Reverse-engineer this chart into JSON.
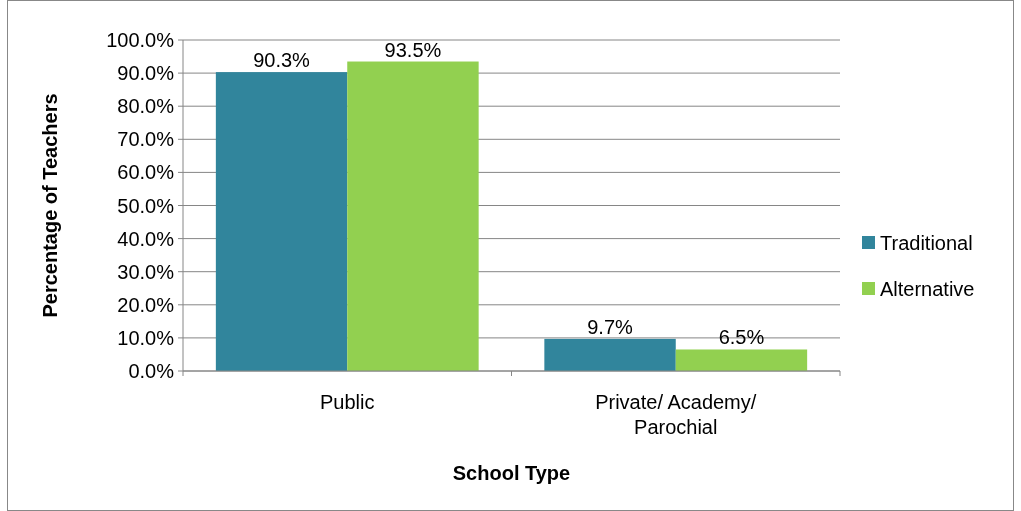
{
  "chart_data": {
    "type": "bar",
    "xlabel": "School Type",
    "ylabel": "Percentage of Teachers",
    "categories": [
      "Public",
      "Private/ Academy/ Parochial"
    ],
    "series": [
      {
        "name": "Traditional",
        "color": "#31859c",
        "values": [
          90.3,
          9.7
        ],
        "value_labels": [
          "90.3%",
          "9.7%"
        ]
      },
      {
        "name": "Alternative",
        "color": "#92d050",
        "values": [
          93.5,
          6.5
        ],
        "value_labels": [
          "93.5%",
          "6.5%"
        ]
      }
    ],
    "ylim": [
      0,
      100
    ],
    "yticks": [
      {
        "value": 0,
        "label": "0.0%"
      },
      {
        "value": 10,
        "label": "10.0%"
      },
      {
        "value": 20,
        "label": "20.0%"
      },
      {
        "value": 30,
        "label": "30.0%"
      },
      {
        "value": 40,
        "label": "40.0%"
      },
      {
        "value": 50,
        "label": "50.0%"
      },
      {
        "value": 60,
        "label": "60.0%"
      },
      {
        "value": 70,
        "label": "70.0%"
      },
      {
        "value": 80,
        "label": "80.0%"
      },
      {
        "value": 90,
        "label": "90.0%"
      },
      {
        "value": 100,
        "label": "100.0%"
      }
    ],
    "grid": "y",
    "legend": "right"
  }
}
